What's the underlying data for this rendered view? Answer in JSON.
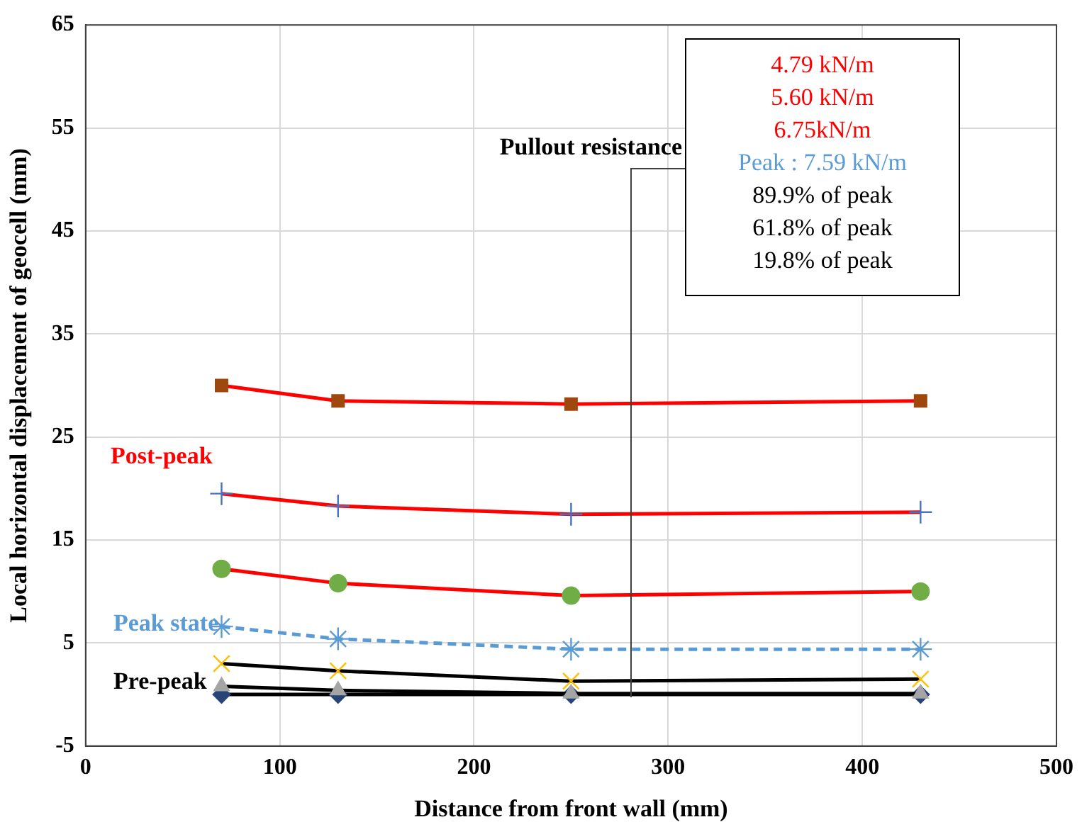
{
  "chart_data": {
    "type": "line",
    "xlabel": "Distance from front wall (mm)",
    "ylabel": "Local horizontal displacement of geocell (mm)",
    "x": [
      70,
      130,
      250,
      430
    ],
    "series": [
      {
        "color": "#ff0000",
        "colors": [
          "#9e480e",
          "#9e480e",
          "#9e480e",
          "#9e480e"
        ],
        "marker": "square",
        "line_style": "solid",
        "values": [
          30.0,
          28.5,
          28.2,
          28.5
        ]
      },
      {
        "color": "#ff0000",
        "colors": [
          "#4472c4",
          "#4472c4",
          "#4472c4",
          "#4472c4"
        ],
        "marker": "cross",
        "line_style": "solid",
        "values": [
          19.5,
          18.3,
          17.5,
          17.7
        ]
      },
      {
        "color": "#ff0000",
        "colors": [
          "#70ad47",
          "#70ad47",
          "#70ad47",
          "#70ad47"
        ],
        "marker": "circle",
        "line_style": "solid",
        "values": [
          12.2,
          10.8,
          9.6,
          10.0
        ]
      },
      {
        "color": "#5b9bd5",
        "colors": [
          "#5b9bd5",
          "#5b9bd5",
          "#5b9bd5",
          "#5b9bd5"
        ],
        "marker": "cross",
        "line_style": "dashed",
        "values": [
          6.6,
          5.4,
          4.4,
          4.4
        ]
      },
      {
        "color": "#000000",
        "colors": [
          "#ffc000",
          "#ffc000",
          "#ffc000",
          "#ffc000"
        ],
        "marker": "cross",
        "line_style": "solid",
        "values": [
          3.0,
          2.3,
          1.3,
          1.5
        ]
      },
      {
        "color": "#000000",
        "colors": [
          "#a5a5a5",
          "#a5a5a5",
          "#a5a5a5",
          "#a5a5a5"
        ],
        "marker": "triangle",
        "line_style": "solid",
        "values": [
          0.8,
          0.4,
          0.1,
          0.1
        ]
      },
      {
        "color": "#000000",
        "colors": [
          "#264478",
          "#264478",
          "#264478",
          "#264478"
        ],
        "marker": "diamond",
        "line_style": "solid",
        "values": [
          0.0,
          0.0,
          0.0,
          0.0
        ]
      }
    ],
    "xlim": [
      0,
      500
    ],
    "xticks": [
      0,
      100,
      200,
      300,
      400,
      500
    ],
    "ylim": [
      -5,
      65
    ],
    "yticks": [
      -5,
      5,
      15,
      25,
      35,
      45,
      55,
      65
    ],
    "grid": true,
    "legend": false,
    "annotations": [
      "Post-peak",
      "Peak state",
      "Pre-peak",
      "Pullout resistance",
      "4.79 kN/m",
      "5.60 kN/m",
      "6.75kN/m",
      "Peak : 7.59 kN/m",
      "89.9% of peak",
      "61.8% of peak",
      "19.8% of peak"
    ]
  }
}
